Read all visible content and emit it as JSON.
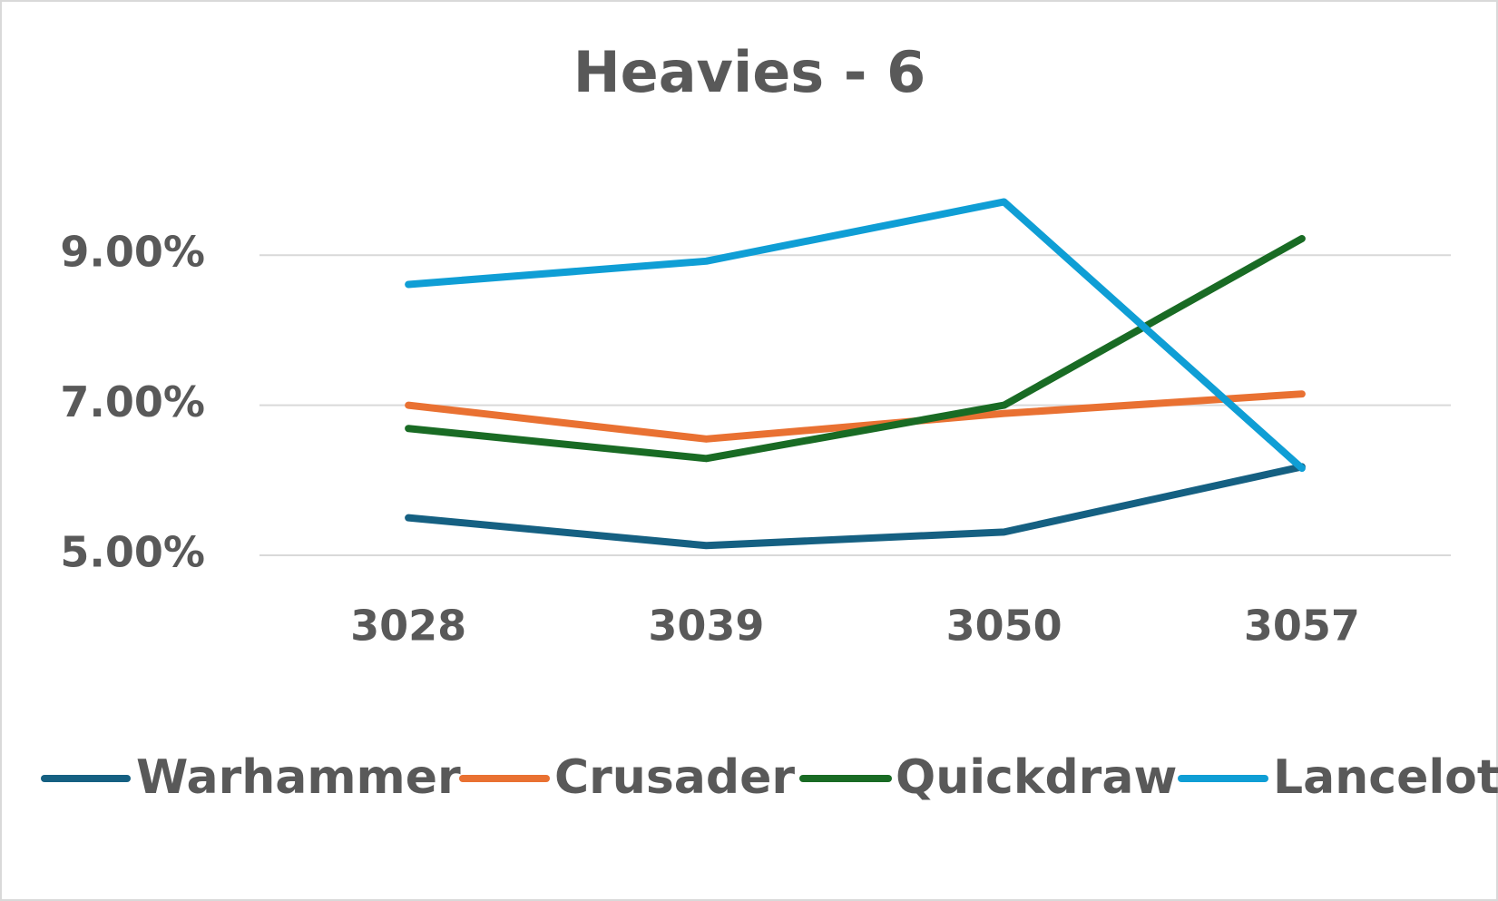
{
  "chart_data": {
    "type": "line",
    "title": "Heavies - 6",
    "categories": [
      "3028",
      "3039",
      "3050",
      "3057"
    ],
    "series": [
      {
        "name": "Warhammer",
        "color": "#156082",
        "values": [
          5.5,
          5.13,
          5.31,
          6.18
        ]
      },
      {
        "name": "Crusader",
        "color": "#e97132",
        "values": [
          7.0,
          6.55,
          6.89,
          7.15
        ]
      },
      {
        "name": "Quickdraw",
        "color": "#196b24",
        "values": [
          6.69,
          6.29,
          7.0,
          9.22
        ]
      },
      {
        "name": "Lancelot",
        "color": "#0f9ed5",
        "values": [
          8.61,
          8.92,
          9.71,
          6.16
        ]
      }
    ],
    "ylim": [
      5,
      10
    ],
    "yticks": [
      {
        "value": 5,
        "label": "5.00%"
      },
      {
        "value": 7,
        "label": "7.00%"
      },
      {
        "value": 9,
        "label": "9.00%"
      }
    ],
    "grid": true,
    "legend": "bottom"
  }
}
